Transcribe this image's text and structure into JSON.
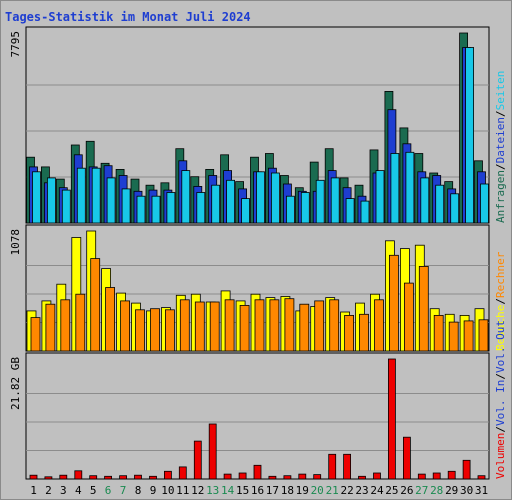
{
  "chart_data": {
    "type": "bar",
    "title": "Tages-Statistik im Monat Juli 2024",
    "categories": [
      "1",
      "2",
      "3",
      "4",
      "5",
      "6",
      "7",
      "8",
      "9",
      "10",
      "11",
      "12",
      "13",
      "14",
      "15",
      "16",
      "17",
      "18",
      "19",
      "20",
      "21",
      "22",
      "23",
      "24",
      "25",
      "26",
      "27",
      "28",
      "29",
      "30",
      "31"
    ],
    "weekend_days": [
      6,
      7,
      13,
      14,
      20,
      21,
      27,
      28
    ],
    "panels": [
      {
        "id": "requests",
        "ymax_label": "7795",
        "ymax": 7795,
        "right_labels": [
          {
            "text": "Anfragen",
            "color": "#1a6b50"
          },
          {
            "text": "Dateien",
            "color": "#1e3ed1"
          },
          {
            "text": "Seiten",
            "color": "#18c8e8"
          }
        ],
        "series": [
          {
            "name": "Anfragen",
            "color": "#1a6b50",
            "values": [
              2700,
              2300,
              1800,
              3200,
              3350,
              2450,
              2200,
              1800,
              1550,
              1650,
              3050,
              1900,
              2200,
              2800,
              1700,
              2700,
              2850,
              1950,
              1450,
              2500,
              3050,
              1850,
              1550,
              3000,
              5400,
              3900,
              2850,
              2050,
              1700,
              7795,
              2550
            ]
          },
          {
            "name": "Dateien",
            "color": "#1e3ed1",
            "values": [
              2300,
              1650,
              1450,
              2800,
              2300,
              2350,
              1950,
              1300,
              1350,
              1350,
              2550,
              1500,
              1950,
              2150,
              1400,
              2100,
              2250,
              1600,
              1300,
              1300,
              2150,
              1450,
              1100,
              2050,
              4650,
              3250,
              2100,
              1950,
              1400,
              7200,
              2100
            ]
          },
          {
            "name": "Seiten",
            "color": "#18c8e8",
            "values": [
              2100,
              1850,
              1350,
              2250,
              2250,
              1850,
              1400,
              1100,
              1100,
              1250,
              2150,
              1250,
              1550,
              1750,
              1000,
              2100,
              2050,
              1100,
              1250,
              1750,
              1850,
              1000,
              900,
              2150,
              2850,
              2900,
              1850,
              1550,
              1200,
              7200,
              1600
            ]
          }
        ]
      },
      {
        "id": "visits",
        "ymax_label": "1078",
        "ymax": 1078,
        "right_labels": [
          {
            "text": "Besuche",
            "color": "#ffff00"
          },
          {
            "text": "Rechner",
            "color": "#ff8800"
          }
        ],
        "series": [
          {
            "name": "Besuche",
            "color": "#ffff00",
            "values": [
              360,
              450,
              600,
              1020,
              1078,
              740,
              520,
              430,
              360,
              390,
              500,
              510,
              440,
              540,
              450,
              510,
              480,
              490,
              360,
              400,
              480,
              350,
              430,
              510,
              990,
              920,
              950,
              380,
              330,
              320,
              380
            ]
          },
          {
            "name": "Rechner",
            "color": "#ff8800",
            "values": [
              300,
              420,
              460,
              510,
              830,
              570,
              450,
              370,
              380,
              370,
              460,
              440,
              440,
              460,
              410,
              460,
              460,
              470,
              420,
              450,
              460,
              320,
              330,
              460,
              860,
              610,
              760,
              320,
              260,
              270,
              280
            ]
          }
        ]
      },
      {
        "id": "volume",
        "ymax_label": "21.82 GB",
        "ymax": 21.82,
        "right_labels": [
          {
            "text": "Volumen",
            "color": "#ee0000"
          },
          {
            "text": "Vol. In",
            "color": "#1e3ed1"
          },
          {
            "text": "Vol. Out",
            "color": "#1e3ed1"
          }
        ],
        "series": [
          {
            "name": "Volumen",
            "color": "#ee0000",
            "values": [
              0.7,
              0.4,
              0.7,
              1.5,
              0.6,
              0.5,
              0.6,
              0.7,
              0.5,
              1.4,
              2.2,
              6.9,
              10.0,
              0.9,
              1.1,
              2.5,
              0.5,
              0.6,
              0.9,
              0.8,
              4.5,
              4.5,
              0.5,
              1.1,
              21.82,
              7.6,
              0.9,
              1.1,
              1.4,
              3.4,
              0.6
            ]
          }
        ]
      }
    ]
  }
}
